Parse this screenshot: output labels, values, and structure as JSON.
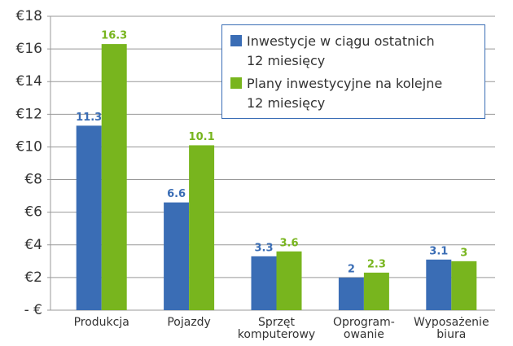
{
  "chart_data": {
    "type": "bar",
    "categories": [
      "Produkcja",
      "Pojazdy",
      "Sprzęt\nkomputerowy",
      "Oprogram-\nowanie",
      "Wyposażenie\nbiura"
    ],
    "series": [
      {
        "name": "Inwestycje w ciągu ostatnich\n12 miesięcy",
        "color": "#3a6db5",
        "values": [
          11.3,
          6.6,
          3.3,
          2,
          3.1
        ]
      },
      {
        "name": "Plany inwestycyjne na kolejne\n12 miesięcy",
        "color": "#78b51e",
        "values": [
          16.3,
          10.1,
          3.6,
          2.3,
          3
        ]
      }
    ],
    "ylim": [
      0,
      18
    ],
    "yticks": [
      {
        "value": 0,
        "label": "- €"
      },
      {
        "value": 2,
        "label": "€2"
      },
      {
        "value": 4,
        "label": "€4"
      },
      {
        "value": 6,
        "label": "€6"
      },
      {
        "value": 8,
        "label": "€8"
      },
      {
        "value": 10,
        "label": "€10"
      },
      {
        "value": 12,
        "label": "€12"
      },
      {
        "value": 14,
        "label": "€14"
      },
      {
        "value": 16,
        "label": "€16"
      },
      {
        "value": 18,
        "label": "€18"
      }
    ],
    "grid": true,
    "legend": "top-right"
  }
}
